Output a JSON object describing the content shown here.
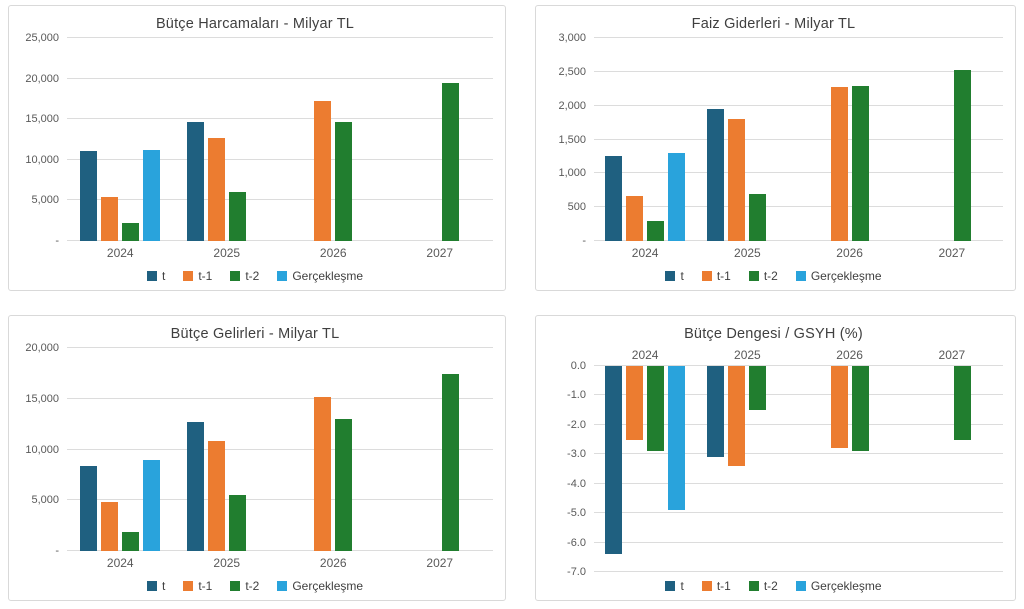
{
  "colors": {
    "t": "#1f6080",
    "t_minus_1": "#ec7c30",
    "t_minus_2": "#217e2f",
    "gerceklesme": "#29a3dc",
    "gridline": "#dcdcdc",
    "text": "#595959"
  },
  "chart_data": [
    {
      "type": "bar",
      "key": "butce-harcamalari",
      "title": "Bütçe Harcamaları - Milyar TL",
      "categories": [
        "2024",
        "2025",
        "2026",
        "2027"
      ],
      "series": [
        {
          "name": "t",
          "key": "t",
          "color": "#1f6080",
          "values": [
            11100,
            14700,
            null,
            null
          ]
        },
        {
          "name": "t-1",
          "key": "t-1",
          "color": "#ec7c30",
          "values": [
            5400,
            12700,
            17200,
            null
          ]
        },
        {
          "name": "t-2",
          "key": "t-2",
          "color": "#217e2f",
          "values": [
            2200,
            6000,
            14700,
            19500
          ]
        },
        {
          "name": "Gerçekleşme",
          "key": "gerceklesme",
          "color": "#29a3dc",
          "values": [
            11200,
            null,
            null,
            null
          ]
        }
      ],
      "ylim": [
        0,
        25000
      ],
      "yticks": [
        {
          "v": 25000,
          "label": "25,000"
        },
        {
          "v": 20000,
          "label": "20,000"
        },
        {
          "v": 15000,
          "label": "15,000"
        },
        {
          "v": 10000,
          "label": "10,000"
        },
        {
          "v": 5000,
          "label": "5,000"
        },
        {
          "v": 0,
          "label": "-"
        }
      ],
      "grid": true,
      "legend_position": "bottom"
    },
    {
      "type": "bar",
      "key": "faiz-giderleri",
      "title": "Faiz Giderleri - Milyar TL",
      "categories": [
        "2024",
        "2025",
        "2026",
        "2027"
      ],
      "series": [
        {
          "name": "t",
          "key": "t",
          "color": "#1f6080",
          "values": [
            1250,
            1950,
            null,
            null
          ]
        },
        {
          "name": "t-1",
          "key": "t-1",
          "color": "#ec7c30",
          "values": [
            670,
            1800,
            2270,
            null
          ]
        },
        {
          "name": "t-2",
          "key": "t-2",
          "color": "#217e2f",
          "values": [
            290,
            690,
            2290,
            2520
          ]
        },
        {
          "name": "Gerçekleşme",
          "key": "gerceklesme",
          "color": "#29a3dc",
          "values": [
            1300,
            null,
            null,
            null
          ]
        }
      ],
      "ylim": [
        0,
        3000
      ],
      "yticks": [
        {
          "v": 3000,
          "label": "3,000"
        },
        {
          "v": 2500,
          "label": "2,500"
        },
        {
          "v": 2000,
          "label": "2,000"
        },
        {
          "v": 1500,
          "label": "1,500"
        },
        {
          "v": 1000,
          "label": "1,000"
        },
        {
          "v": 500,
          "label": "500"
        },
        {
          "v": 0,
          "label": "-"
        }
      ],
      "grid": true,
      "legend_position": "bottom"
    },
    {
      "type": "bar",
      "key": "butce-gelirleri",
      "title": "Bütçe Gelirleri - Milyar TL",
      "categories": [
        "2024",
        "2025",
        "2026",
        "2027"
      ],
      "series": [
        {
          "name": "t",
          "key": "t",
          "color": "#1f6080",
          "values": [
            8400,
            12700,
            null,
            null
          ]
        },
        {
          "name": "t-1",
          "key": "t-1",
          "color": "#ec7c30",
          "values": [
            4800,
            10800,
            15200,
            null
          ]
        },
        {
          "name": "t-2",
          "key": "t-2",
          "color": "#217e2f",
          "values": [
            1900,
            5500,
            13000,
            17400
          ]
        },
        {
          "name": "Gerçekleşme",
          "key": "gerceklesme",
          "color": "#29a3dc",
          "values": [
            9000,
            null,
            null,
            null
          ]
        }
      ],
      "ylim": [
        0,
        20000
      ],
      "yticks": [
        {
          "v": 20000,
          "label": "20,000"
        },
        {
          "v": 15000,
          "label": "15,000"
        },
        {
          "v": 10000,
          "label": "10,000"
        },
        {
          "v": 5000,
          "label": "5,000"
        },
        {
          "v": 0,
          "label": "-"
        }
      ],
      "grid": true,
      "legend_position": "bottom"
    },
    {
      "type": "bar",
      "key": "butce-dengesi-gsyh",
      "title": "Bütçe Dengesi / GSYH (%)",
      "categories": [
        "2024",
        "2025",
        "2026",
        "2027"
      ],
      "series": [
        {
          "name": "t",
          "key": "t",
          "color": "#1f6080",
          "values": [
            -6.4,
            -3.1,
            null,
            null
          ]
        },
        {
          "name": "t-1",
          "key": "t-1",
          "color": "#ec7c30",
          "values": [
            -2.5,
            -3.4,
            -2.8,
            null
          ]
        },
        {
          "name": "t-2",
          "key": "t-2",
          "color": "#217e2f",
          "values": [
            -2.9,
            -1.5,
            -2.9,
            -2.5
          ]
        },
        {
          "name": "Gerçekleşme",
          "key": "gerceklesme",
          "color": "#29a3dc",
          "values": [
            -4.9,
            null,
            null,
            null
          ]
        }
      ],
      "ylim": [
        -7,
        0
      ],
      "yticks": [
        {
          "v": 0,
          "label": "0.0"
        },
        {
          "v": -1,
          "label": "-1.0"
        },
        {
          "v": -2,
          "label": "-2.0"
        },
        {
          "v": -3,
          "label": "-3.0"
        },
        {
          "v": -4,
          "label": "-4.0"
        },
        {
          "v": -5,
          "label": "-5.0"
        },
        {
          "v": -6,
          "label": "-6.0"
        },
        {
          "v": -7,
          "label": "-7.0"
        }
      ],
      "grid": true,
      "categories_position": "top",
      "legend_position": "bottom"
    }
  ]
}
